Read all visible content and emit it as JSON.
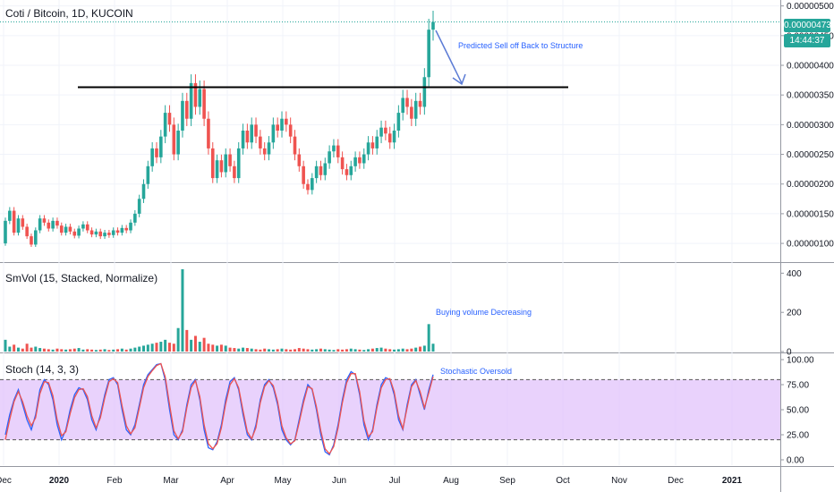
{
  "chart_data": [
    {
      "type": "candlestick",
      "title": "Coti / Bitcoin, 1D, KUCOIN",
      "x_tick_labels": [
        "Dec",
        "2020",
        "Feb",
        "Mar",
        "Apr",
        "May",
        "Jun",
        "Jul",
        "Aug",
        "Sep",
        "Oct",
        "Nov",
        "Dec",
        "2021"
      ],
      "y_tick_labels": [
        "0.00000500",
        "0.00000450",
        "0.00000400",
        "0.00000350",
        "0.00000300",
        "0.00000250",
        "0.00000200",
        "0.00000150",
        "0.00000100"
      ],
      "ylim": [
        7e-07,
        5.1e-06
      ],
      "last_price_label": "0.00000473",
      "countdown_label": "14:44:37",
      "resistance_level": 3.63e-06,
      "series": [
        {
          "values": [
            [
              1e-06,
              1.38e-06
            ],
            [
              1.38e-06,
              1.55e-06
            ],
            [
              1.55e-06,
              1.18e-06
            ],
            [
              1.18e-06,
              1.42e-06
            ],
            [
              1.42e-06,
              1.28e-06
            ],
            [
              1.28e-06,
              1.12e-06
            ],
            [
              1.12e-06,
              9.8e-07
            ],
            [
              9.8e-07,
              1.22e-06
            ],
            [
              1.22e-06,
              1.42e-06
            ],
            [
              1.42e-06,
              1.35e-06
            ],
            [
              1.35e-06,
              1.25e-06
            ],
            [
              1.25e-06,
              1.38e-06
            ],
            [
              1.38e-06,
              1.3e-06
            ],
            [
              1.3e-06,
              1.18e-06
            ],
            [
              1.18e-06,
              1.28e-06
            ],
            [
              1.28e-06,
              1.2e-06
            ],
            [
              1.2e-06,
              1.13e-06
            ],
            [
              1.13e-06,
              1.25e-06
            ],
            [
              1.25e-06,
              1.32e-06
            ],
            [
              1.32e-06,
              1.22e-06
            ],
            [
              1.22e-06,
              1.15e-06
            ],
            [
              1.15e-06,
              1.2e-06
            ],
            [
              1.2e-06,
              1.12e-06
            ],
            [
              1.12e-06,
              1.18e-06
            ],
            [
              1.18e-06,
              1.14e-06
            ],
            [
              1.14e-06,
              1.22e-06
            ],
            [
              1.22e-06,
              1.18e-06
            ],
            [
              1.18e-06,
              1.26e-06
            ],
            [
              1.26e-06,
              1.22e-06
            ],
            [
              1.22e-06,
              1.35e-06
            ],
            [
              1.35e-06,
              1.5e-06
            ],
            [
              1.5e-06,
              1.75e-06
            ],
            [
              1.75e-06,
              2e-06
            ],
            [
              2e-06,
              2.3e-06
            ],
            [
              2.3e-06,
              2.6e-06
            ],
            [
              2.6e-06,
              2.45e-06
            ],
            [
              2.45e-06,
              2.8e-06
            ],
            [
              2.8e-06,
              3.2e-06
            ],
            [
              3.2e-06,
              3e-06
            ],
            [
              3e-06,
              2.5e-06
            ],
            [
              2.5e-06,
              2.9e-06
            ],
            [
              2.9e-06,
              3.4e-06
            ],
            [
              3.4e-06,
              3.1e-06
            ],
            [
              3.1e-06,
              3.7e-06
            ],
            [
              3.7e-06,
              3.3e-06
            ],
            [
              3.3e-06,
              3.6e-06
            ],
            [
              3.6e-06,
              3.1e-06
            ],
            [
              3.1e-06,
              2.6e-06
            ],
            [
              2.6e-06,
              2.1e-06
            ],
            [
              2.1e-06,
              2.4e-06
            ],
            [
              2.4e-06,
              2.2e-06
            ],
            [
              2.2e-06,
              2.5e-06
            ],
            [
              2.5e-06,
              2.3e-06
            ],
            [
              2.3e-06,
              2.1e-06
            ],
            [
              2.1e-06,
              2.6e-06
            ],
            [
              2.6e-06,
              2.9e-06
            ],
            [
              2.9e-06,
              2.7e-06
            ],
            [
              2.7e-06,
              3e-06
            ],
            [
              3e-06,
              2.8e-06
            ],
            [
              2.8e-06,
              2.6e-06
            ],
            [
              2.6e-06,
              2.5e-06
            ],
            [
              2.5e-06,
              2.7e-06
            ],
            [
              2.7e-06,
              3e-06
            ],
            [
              3e-06,
              2.9e-06
            ],
            [
              2.9e-06,
              3.1e-06
            ],
            [
              3.1e-06,
              3e-06
            ],
            [
              3e-06,
              2.8e-06
            ],
            [
              2.8e-06,
              2.5e-06
            ],
            [
              2.5e-06,
              2.3e-06
            ],
            [
              2.3e-06,
              2e-06
            ],
            [
              2e-06,
              1.9e-06
            ],
            [
              1.9e-06,
              2.1e-06
            ],
            [
              2.1e-06,
              2.3e-06
            ],
            [
              2.3e-06,
              2.15e-06
            ],
            [
              2.15e-06,
              2.35e-06
            ],
            [
              2.35e-06,
              2.55e-06
            ],
            [
              2.55e-06,
              2.65e-06
            ],
            [
              2.65e-06,
              2.45e-06
            ],
            [
              2.45e-06,
              2.25e-06
            ],
            [
              2.25e-06,
              2.15e-06
            ],
            [
              2.15e-06,
              2.3e-06
            ],
            [
              2.3e-06,
              2.45e-06
            ],
            [
              2.45e-06,
              2.35e-06
            ],
            [
              2.35e-06,
              2.5e-06
            ],
            [
              2.5e-06,
              2.7e-06
            ],
            [
              2.7e-06,
              2.6e-06
            ],
            [
              2.6e-06,
              2.8e-06
            ],
            [
              2.8e-06,
              2.95e-06
            ],
            [
              2.95e-06,
              2.85e-06
            ],
            [
              2.85e-06,
              2.7e-06
            ],
            [
              2.7e-06,
              2.9e-06
            ],
            [
              2.9e-06,
              3.2e-06
            ],
            [
              3.2e-06,
              3.45e-06
            ],
            [
              3.45e-06,
              3.3e-06
            ],
            [
              3.3e-06,
              3.1e-06
            ],
            [
              3.1e-06,
              3.4e-06
            ],
            [
              3.4e-06,
              3.3e-06
            ],
            [
              3.3e-06,
              3.8e-06
            ],
            [
              3.8e-06,
              4.6e-06
            ],
            [
              4.6e-06,
              4.73e-06
            ]
          ]
        }
      ]
    },
    {
      "type": "bar",
      "title": "SmVol (15, Stacked, Normalize)",
      "y_tick_labels": [
        "400",
        "200",
        "0"
      ],
      "ylim": [
        0,
        420
      ],
      "series": [
        {
          "values": [
            60,
            25,
            35,
            20,
            15,
            40,
            20,
            25,
            18,
            15,
            12,
            10,
            15,
            12,
            10,
            12,
            15,
            18,
            10,
            12,
            10,
            8,
            10,
            12,
            8,
            10,
            12,
            15,
            10,
            15,
            20,
            25,
            30,
            35,
            40,
            45,
            50,
            60,
            45,
            40,
            120,
            420,
            110,
            60,
            80,
            50,
            70,
            40,
            35,
            30,
            35,
            30,
            20,
            18,
            15,
            20,
            18,
            15,
            12,
            10,
            15,
            12,
            10,
            12,
            15,
            12,
            10,
            12,
            18,
            15,
            12,
            10,
            12,
            15,
            12,
            10,
            8,
            12,
            10,
            12,
            15,
            12,
            10,
            8,
            12,
            15,
            18,
            20,
            15,
            12,
            10,
            12,
            15,
            12,
            15,
            20,
            25,
            30,
            140,
            40
          ]
        }
      ]
    },
    {
      "type": "line",
      "title": "Stoch (14, 3, 3)",
      "y_tick_labels": [
        "100.00",
        "75.00",
        "50.00",
        "25.00",
        "0.00"
      ],
      "ylim": [
        0,
        100
      ],
      "upper_band": 80,
      "lower_band": 20,
      "series": [
        {
          "values": [
            25,
            45,
            60,
            70,
            55,
            40,
            30,
            45,
            70,
            80,
            75,
            60,
            35,
            20,
            30,
            50,
            65,
            72,
            70,
            60,
            40,
            30,
            45,
            65,
            80,
            82,
            75,
            50,
            30,
            25,
            35,
            55,
            75,
            85,
            90,
            95,
            96,
            80,
            50,
            25,
            20,
            30,
            55,
            75,
            80,
            60,
            30,
            12,
            10,
            18,
            35,
            60,
            78,
            82,
            70,
            45,
            25,
            20,
            35,
            60,
            75,
            80,
            72,
            55,
            30,
            20,
            15,
            20,
            40,
            60,
            75,
            70,
            50,
            25,
            8,
            5,
            15,
            35,
            60,
            80,
            88,
            85,
            65,
            35,
            20,
            30,
            55,
            75,
            82,
            80,
            65,
            40,
            30,
            55,
            75,
            80,
            65,
            50,
            70,
            85
          ]
        },
        {
          "values": [
            20,
            40,
            58,
            68,
            58,
            44,
            34,
            42,
            66,
            78,
            77,
            64,
            40,
            24,
            28,
            46,
            62,
            70,
            71,
            63,
            44,
            32,
            42,
            62,
            78,
            81,
            77,
            54,
            34,
            26,
            32,
            52,
            72,
            83,
            89,
            94,
            96,
            83,
            55,
            29,
            21,
            28,
            52,
            72,
            79,
            63,
            35,
            16,
            11,
            16,
            32,
            56,
            75,
            81,
            72,
            49,
            28,
            21,
            32,
            57,
            73,
            79,
            74,
            58,
            34,
            22,
            16,
            19,
            37,
            57,
            73,
            71,
            53,
            29,
            11,
            6,
            13,
            32,
            57,
            77,
            86,
            86,
            68,
            39,
            23,
            28,
            52,
            72,
            80,
            81,
            68,
            44,
            31,
            52,
            73,
            79,
            68,
            52,
            67,
            83
          ]
        }
      ]
    }
  ],
  "annotations": {
    "sell_off": "Predicted Sell off Back to Structure",
    "volume": "Buying volume Decreasing",
    "stoch": "Stochastic Oversold"
  },
  "colors": {
    "up": "#26a69a",
    "down": "#ef5350",
    "stoch_k": "#2962ff",
    "stoch_d": "#ef5350",
    "band_fill": "#e1c3fb",
    "annotation": "#2962ff"
  }
}
